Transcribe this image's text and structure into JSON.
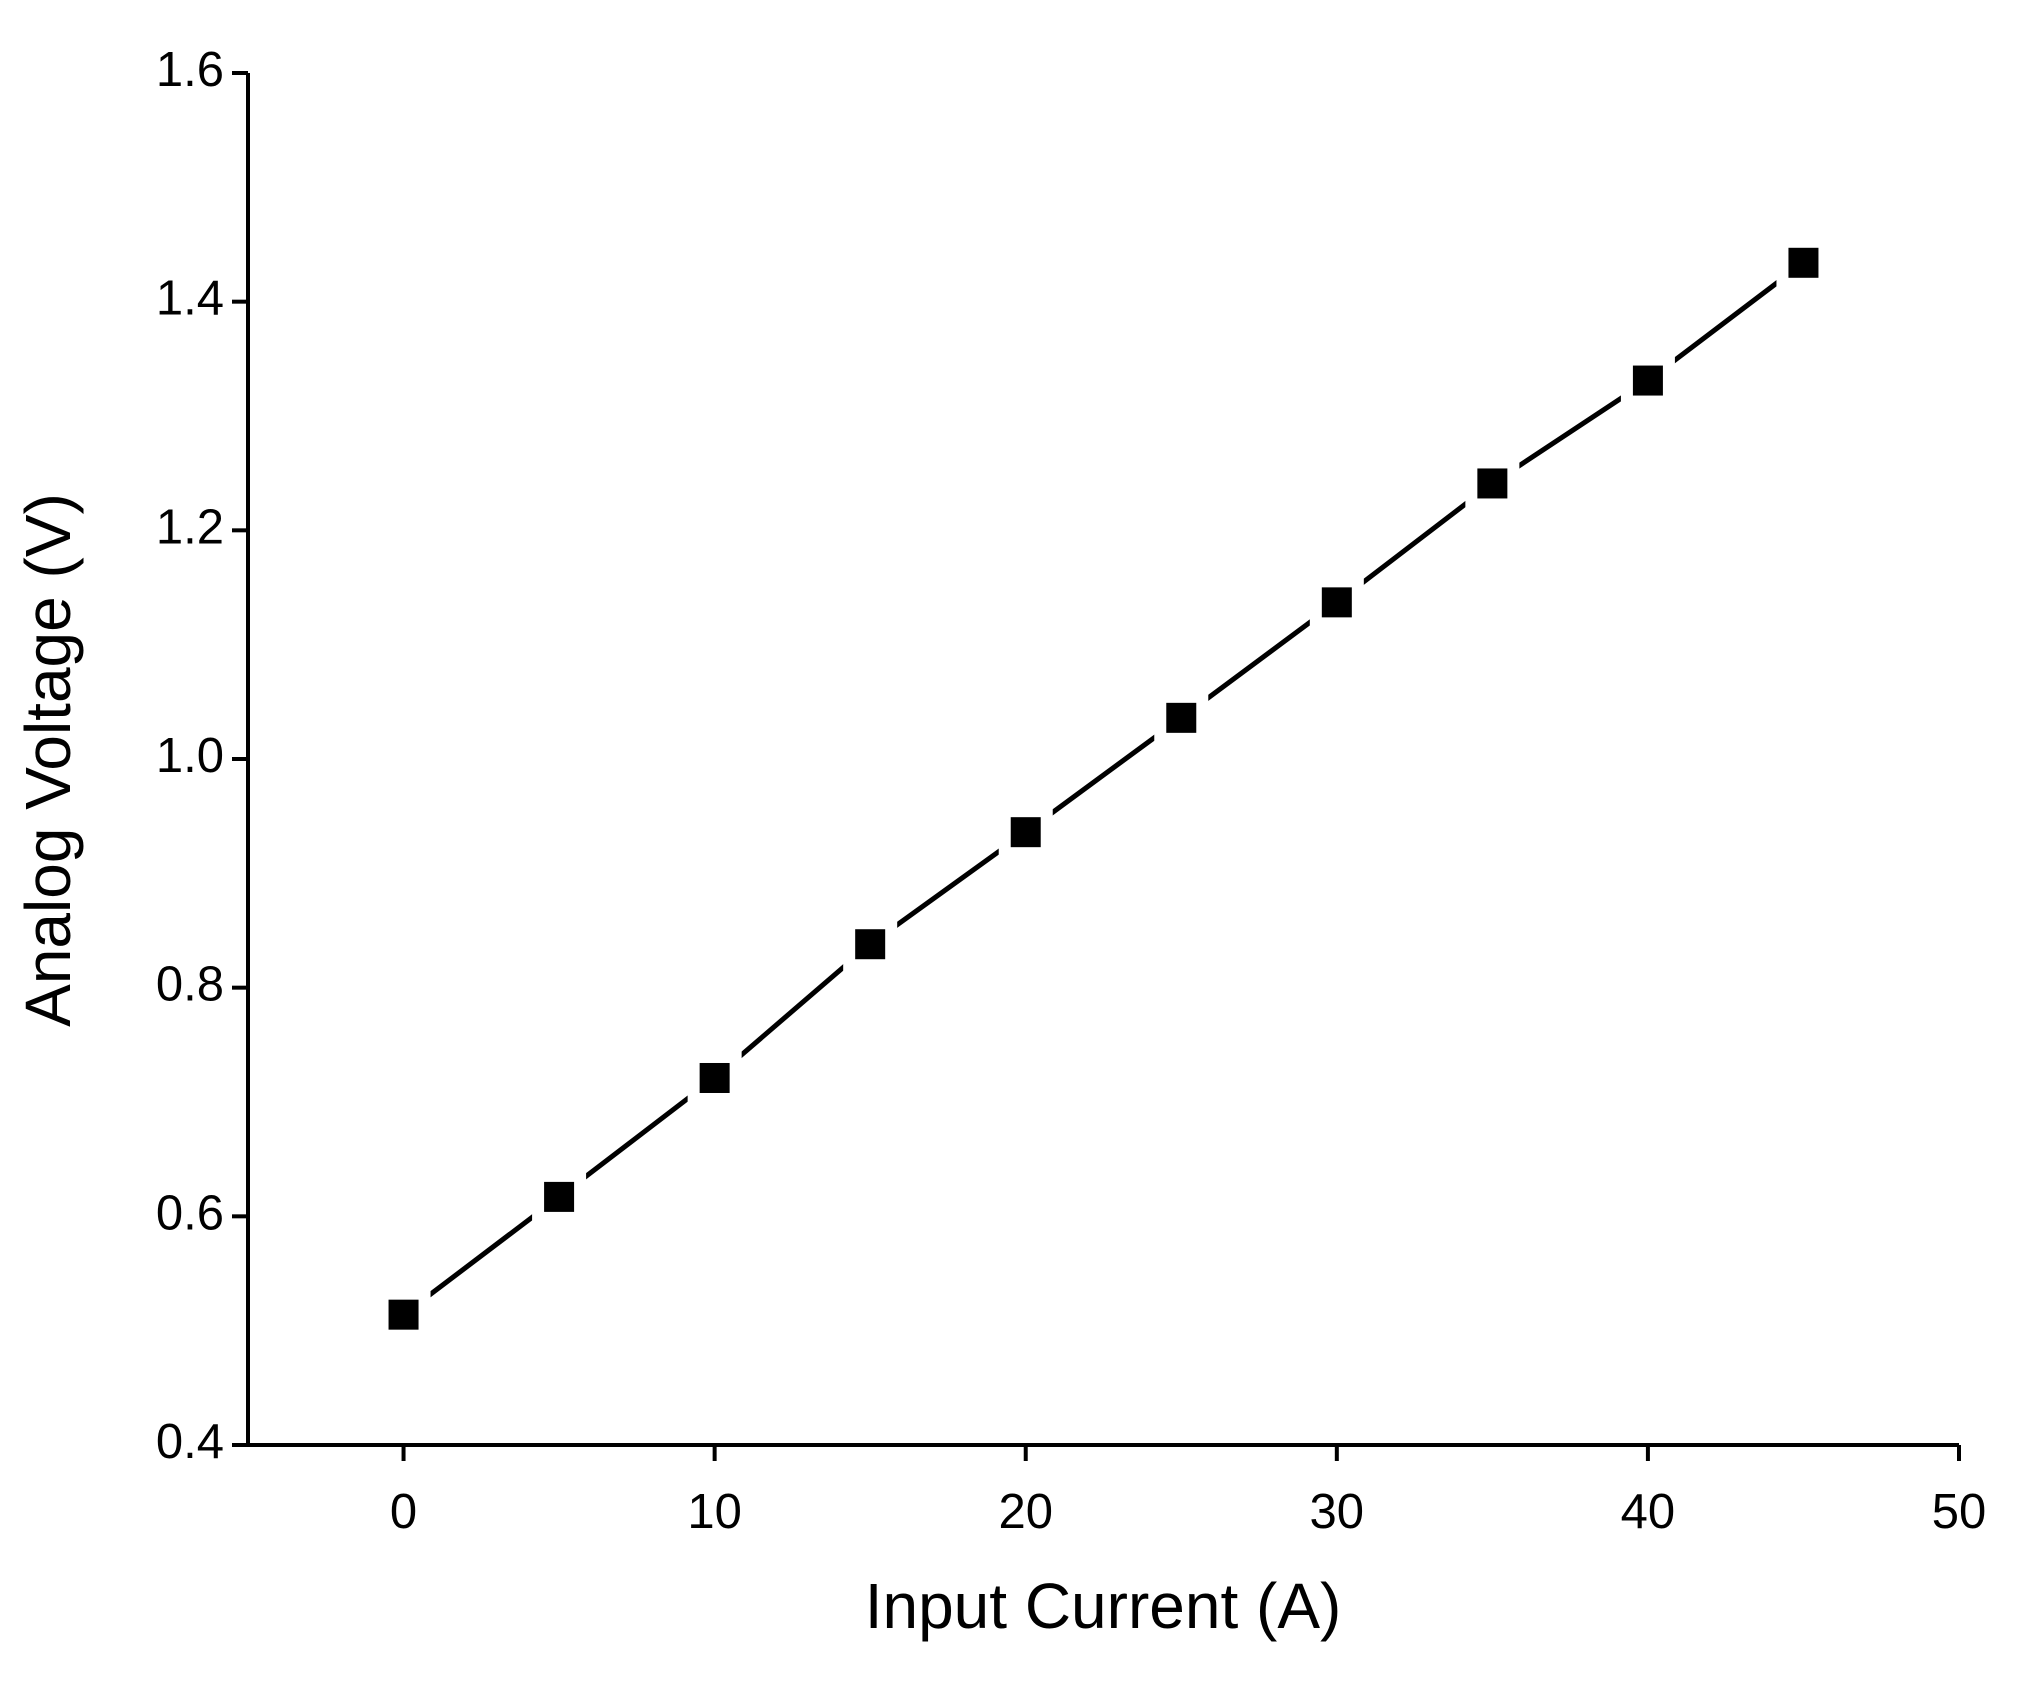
{
  "chart_data": {
    "type": "line",
    "x_label": "Input Current (A)",
    "y_label": "Analog Voltage (V)",
    "x": [
      0,
      5,
      10,
      15,
      20,
      25,
      30,
      35,
      40,
      45
    ],
    "series": [
      {
        "color": "#000000",
        "marker": "square",
        "values": [
          0.514,
          0.617,
          0.721,
          0.838,
          0.936,
          1.036,
          1.137,
          1.241,
          1.331,
          1.434
        ]
      }
    ],
    "xlim": [
      -5,
      50
    ],
    "xticks": [
      0,
      10,
      20,
      30,
      40,
      50
    ],
    "ylim": [
      0.4,
      1.6
    ],
    "yticks": [
      0.4,
      0.6,
      0.8,
      {
        "value": 1,
        "label": "1.0"
      },
      1.2,
      1.4,
      1.6
    ],
    "grid": false
  }
}
